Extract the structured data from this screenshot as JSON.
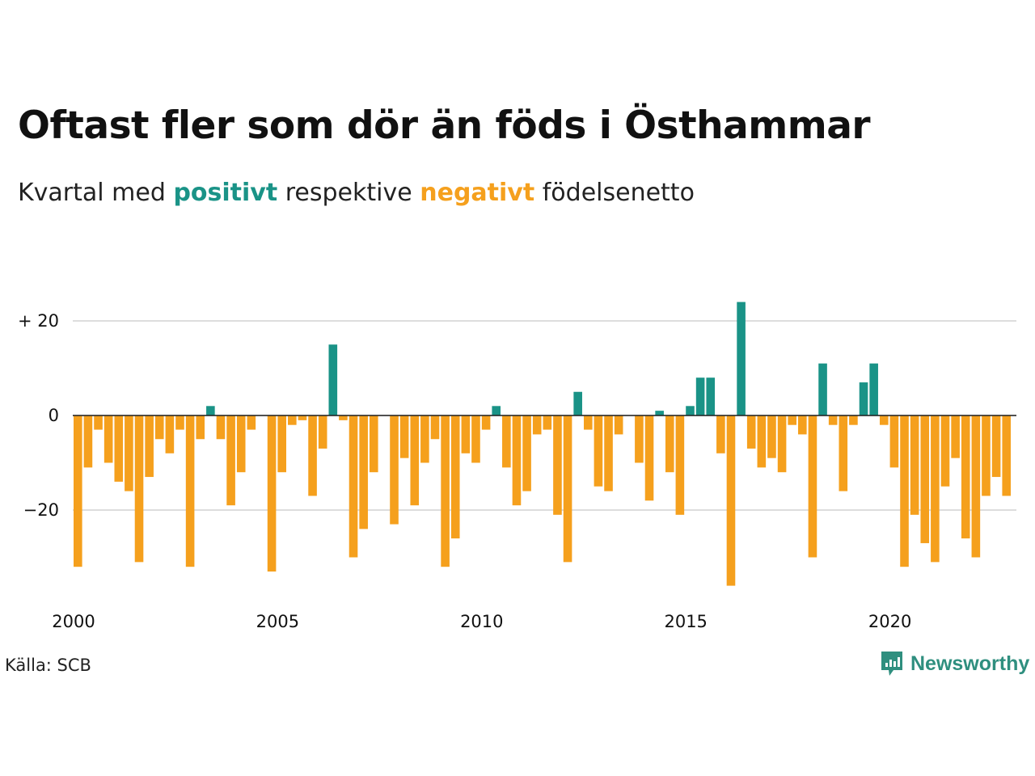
{
  "title": "Oftast fler som dör än föds i Östhammar",
  "subtitle": {
    "prefix": "Kvartal med",
    "positive_word": "positivt",
    "middle": "respektive",
    "negative_word": "negativt",
    "suffix": "födelsenetto"
  },
  "colors": {
    "positive": "#1a9387",
    "negative": "#f5a01d",
    "grid": "#dddddd",
    "brand": "#2f8f7f"
  },
  "source": "Källa: SCB",
  "brand": {
    "name": "Newsworthy",
    "icon": "newsworthy-logo-icon"
  },
  "chart_data": {
    "type": "bar",
    "x_start": "2000 Q1",
    "quarters_per_year": 4,
    "x_tick_labels": [
      "2000",
      "2005",
      "2010",
      "2015",
      "2020"
    ],
    "y_tick_labels": [
      {
        "value": 20,
        "label": "+ 20"
      },
      {
        "value": 0,
        "label": "0"
      },
      {
        "value": -20,
        "label": "−20"
      }
    ],
    "ylim": [
      -38,
      26
    ],
    "grid": true,
    "values": [
      -32,
      -11,
      -3,
      -10,
      -14,
      -16,
      -31,
      -13,
      -5,
      -8,
      -3,
      -32,
      -5,
      2,
      -5,
      -19,
      -12,
      -3,
      0,
      -33,
      -12,
      -2,
      -1,
      -17,
      -7,
      15,
      -1,
      -30,
      -24,
      -12,
      0,
      -23,
      -9,
      -19,
      -10,
      -5,
      -32,
      -26,
      -8,
      -10,
      -3,
      2,
      -11,
      -19,
      -16,
      -4,
      -3,
      -21,
      -31,
      5,
      -3,
      -15,
      -16,
      -4,
      0,
      -10,
      -18,
      1,
      -12,
      -21,
      2,
      8,
      8,
      -8,
      -36,
      24,
      -7,
      -11,
      -9,
      -12,
      -2,
      -4,
      -30,
      11,
      -2,
      -16,
      -2,
      7,
      11,
      -2,
      -11,
      -32,
      -21,
      -27,
      -31,
      -15,
      -9,
      -26,
      -30,
      -17,
      -13,
      -17
    ]
  }
}
